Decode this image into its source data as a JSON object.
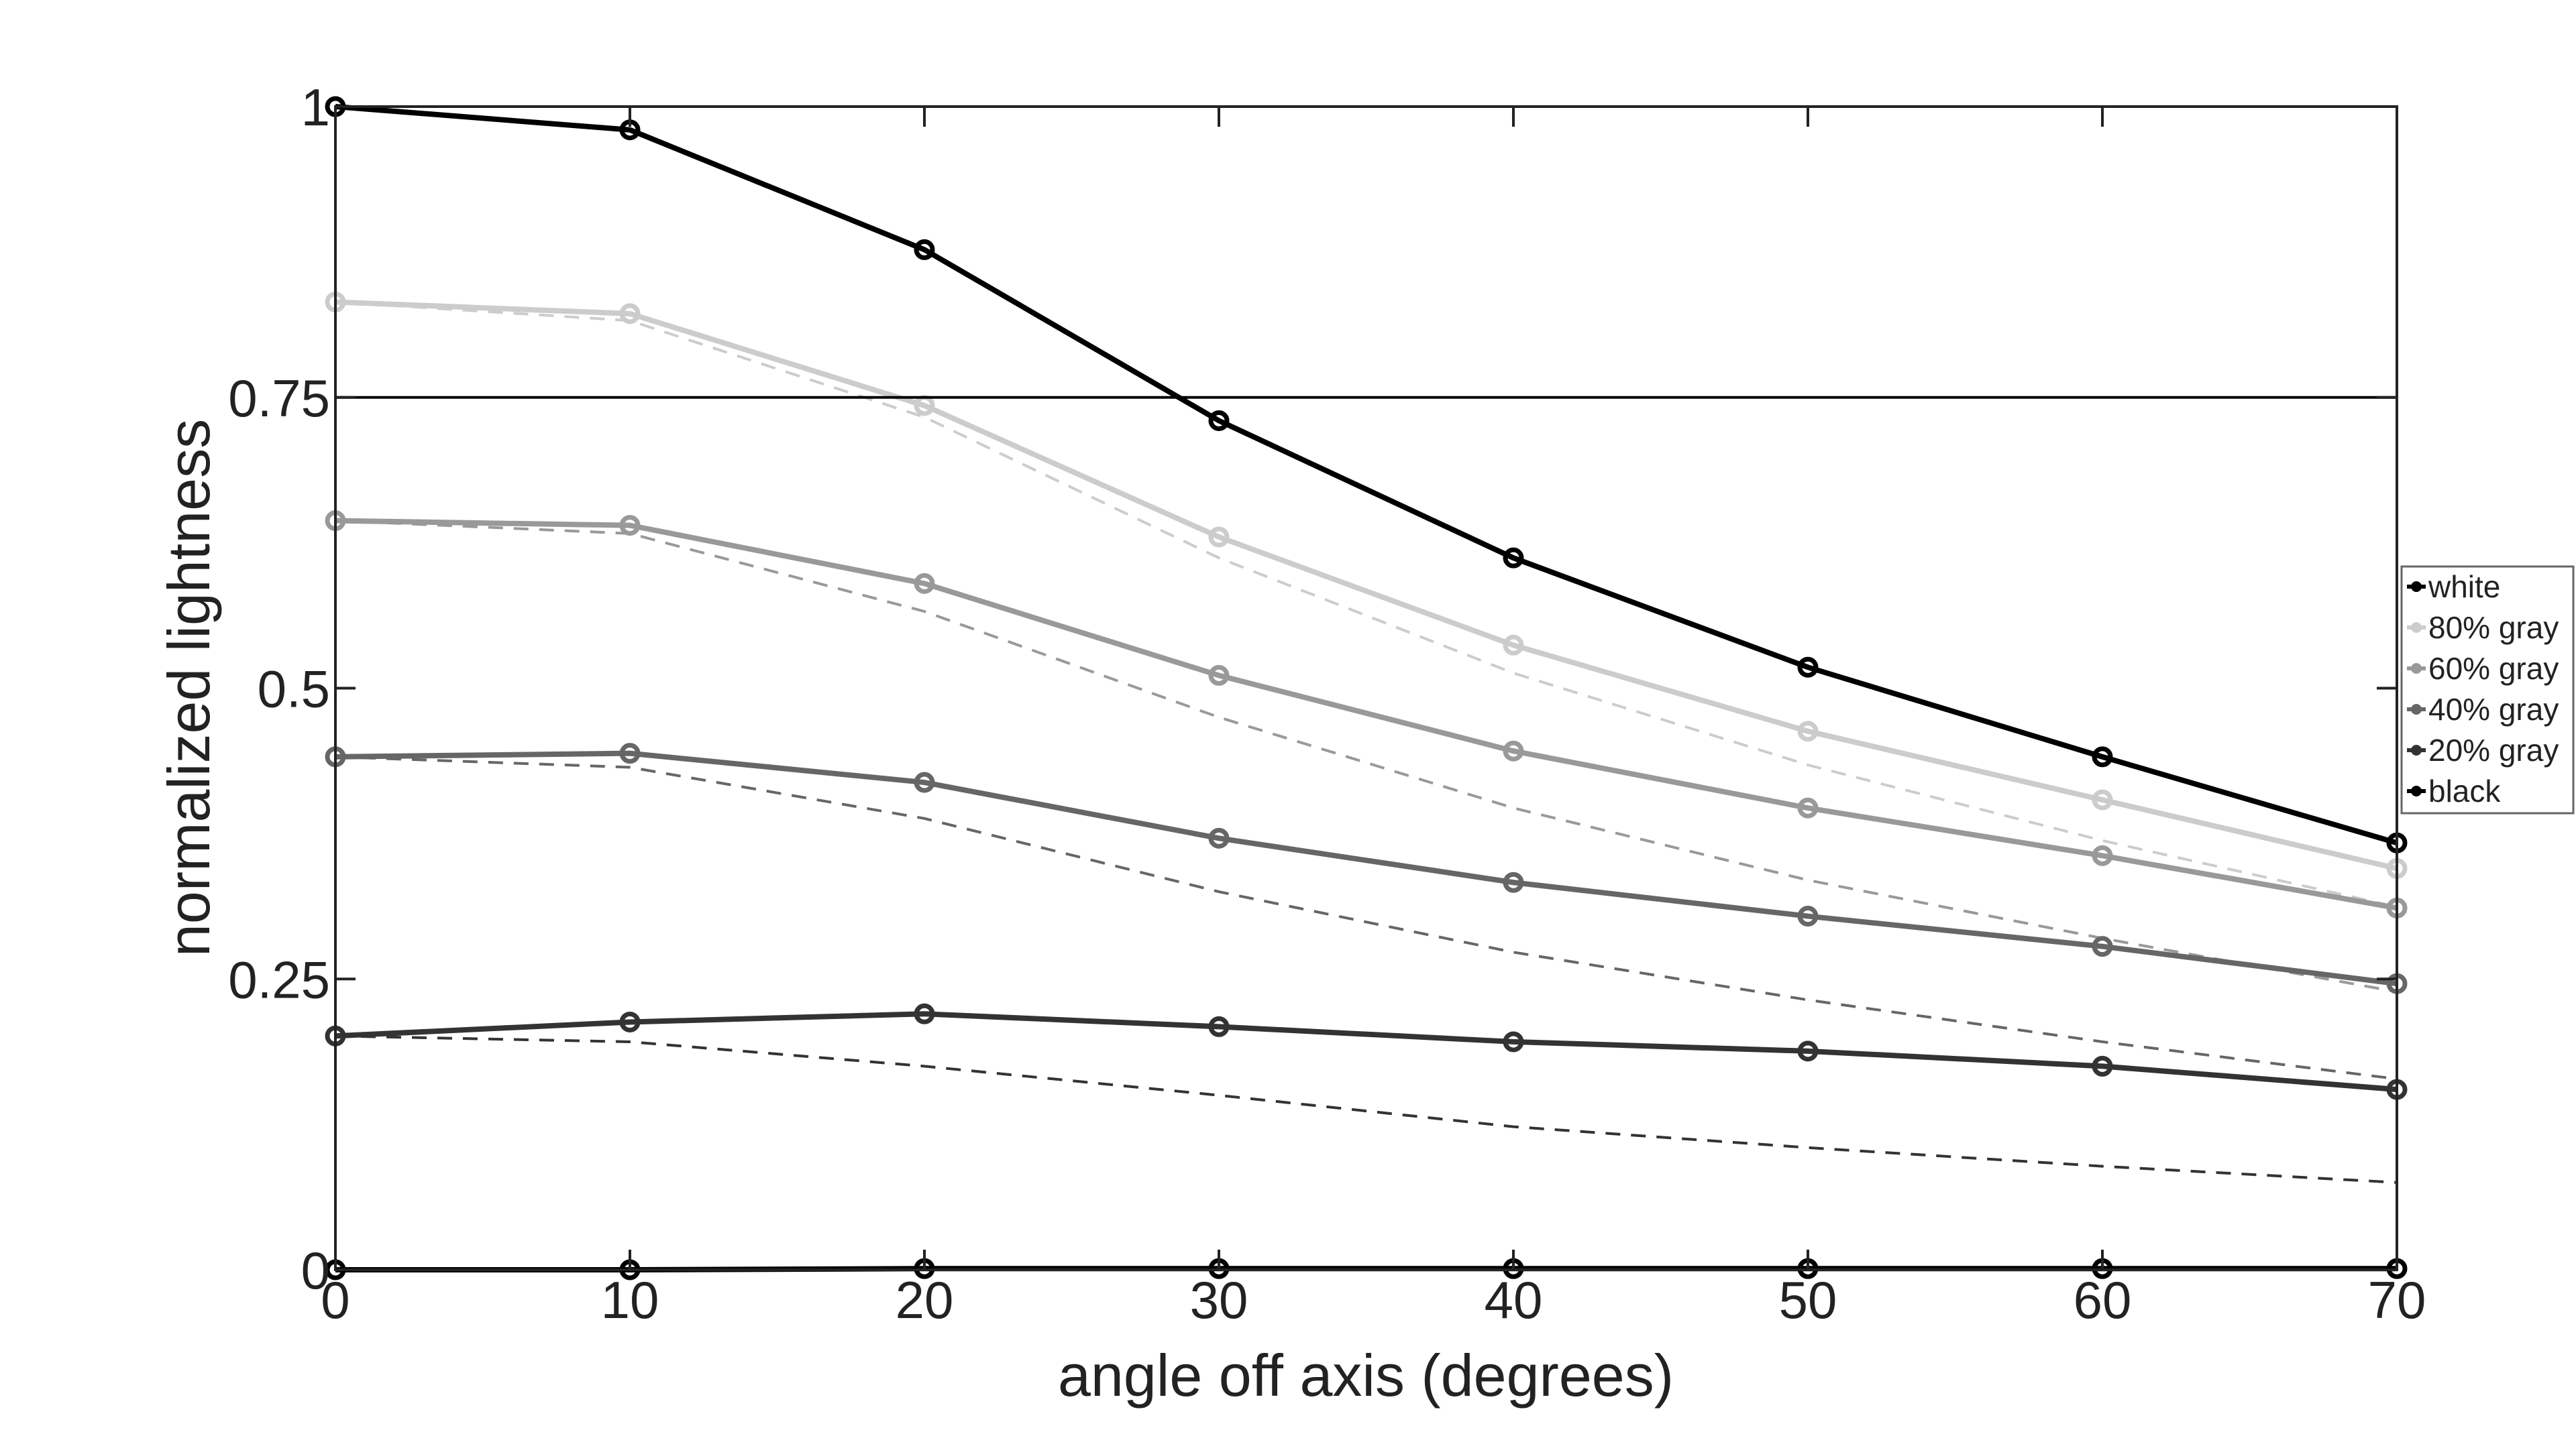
{
  "chart_data": {
    "type": "line",
    "title": "",
    "xlabel": "angle off axis (degrees)",
    "ylabel": "normalized lightness",
    "xlim": [
      0,
      70
    ],
    "ylim": [
      0,
      1
    ],
    "x_ticks": [
      "0",
      "10",
      "20",
      "30",
      "40",
      "50",
      "60",
      "70"
    ],
    "y_ticks": [
      "0",
      "0.25",
      "0.5",
      "0.75",
      "1"
    ],
    "x_tick_values": [
      0,
      10,
      20,
      30,
      40,
      50,
      60,
      70
    ],
    "y_tick_values": [
      0,
      0.25,
      0.5,
      0.75,
      1
    ],
    "grid": false,
    "reference_line_y": 0.75,
    "legend_position": "right",
    "x": [
      0,
      10,
      20,
      30,
      40,
      50,
      60,
      70
    ],
    "series": [
      {
        "name": "white",
        "color": "#000000",
        "style": "solid-circle",
        "values": [
          1.0,
          0.98,
          0.877,
          0.73,
          0.612,
          0.518,
          0.441,
          0.367
        ]
      },
      {
        "name": "80% gray",
        "color": "#cccccc",
        "style": "solid-circle",
        "values": [
          0.832,
          0.822,
          0.743,
          0.63,
          0.537,
          0.463,
          0.404,
          0.345
        ]
      },
      {
        "name": "60% gray",
        "color": "#999999",
        "style": "solid-circle",
        "values": [
          0.644,
          0.64,
          0.59,
          0.511,
          0.446,
          0.397,
          0.356,
          0.311
        ]
      },
      {
        "name": "40% gray",
        "color": "#666666",
        "style": "solid-circle",
        "values": [
          0.441,
          0.444,
          0.419,
          0.371,
          0.333,
          0.304,
          0.278,
          0.246
        ]
      },
      {
        "name": "20% gray",
        "color": "#333333",
        "style": "solid-circle",
        "values": [
          0.201,
          0.213,
          0.22,
          0.209,
          0.196,
          0.188,
          0.175,
          0.155
        ]
      },
      {
        "name": "black",
        "color": "#000000",
        "style": "solid-circle",
        "values": [
          0,
          0,
          0.001,
          0.001,
          0.001,
          0.001,
          0.001,
          0.001
        ]
      }
    ],
    "dashed_series": [
      {
        "color": "#cccccc",
        "values": [
          0.832,
          0.816,
          0.733,
          0.612,
          0.513,
          0.434,
          0.369,
          0.312
        ]
      },
      {
        "color": "#999999",
        "values": [
          0.644,
          0.633,
          0.566,
          0.475,
          0.397,
          0.335,
          0.285,
          0.239
        ]
      },
      {
        "color": "#666666",
        "values": [
          0.441,
          0.432,
          0.388,
          0.325,
          0.273,
          0.232,
          0.196,
          0.164
        ]
      },
      {
        "color": "#333333",
        "values": [
          0.201,
          0.196,
          0.175,
          0.15,
          0.123,
          0.105,
          0.089,
          0.075
        ]
      }
    ]
  }
}
